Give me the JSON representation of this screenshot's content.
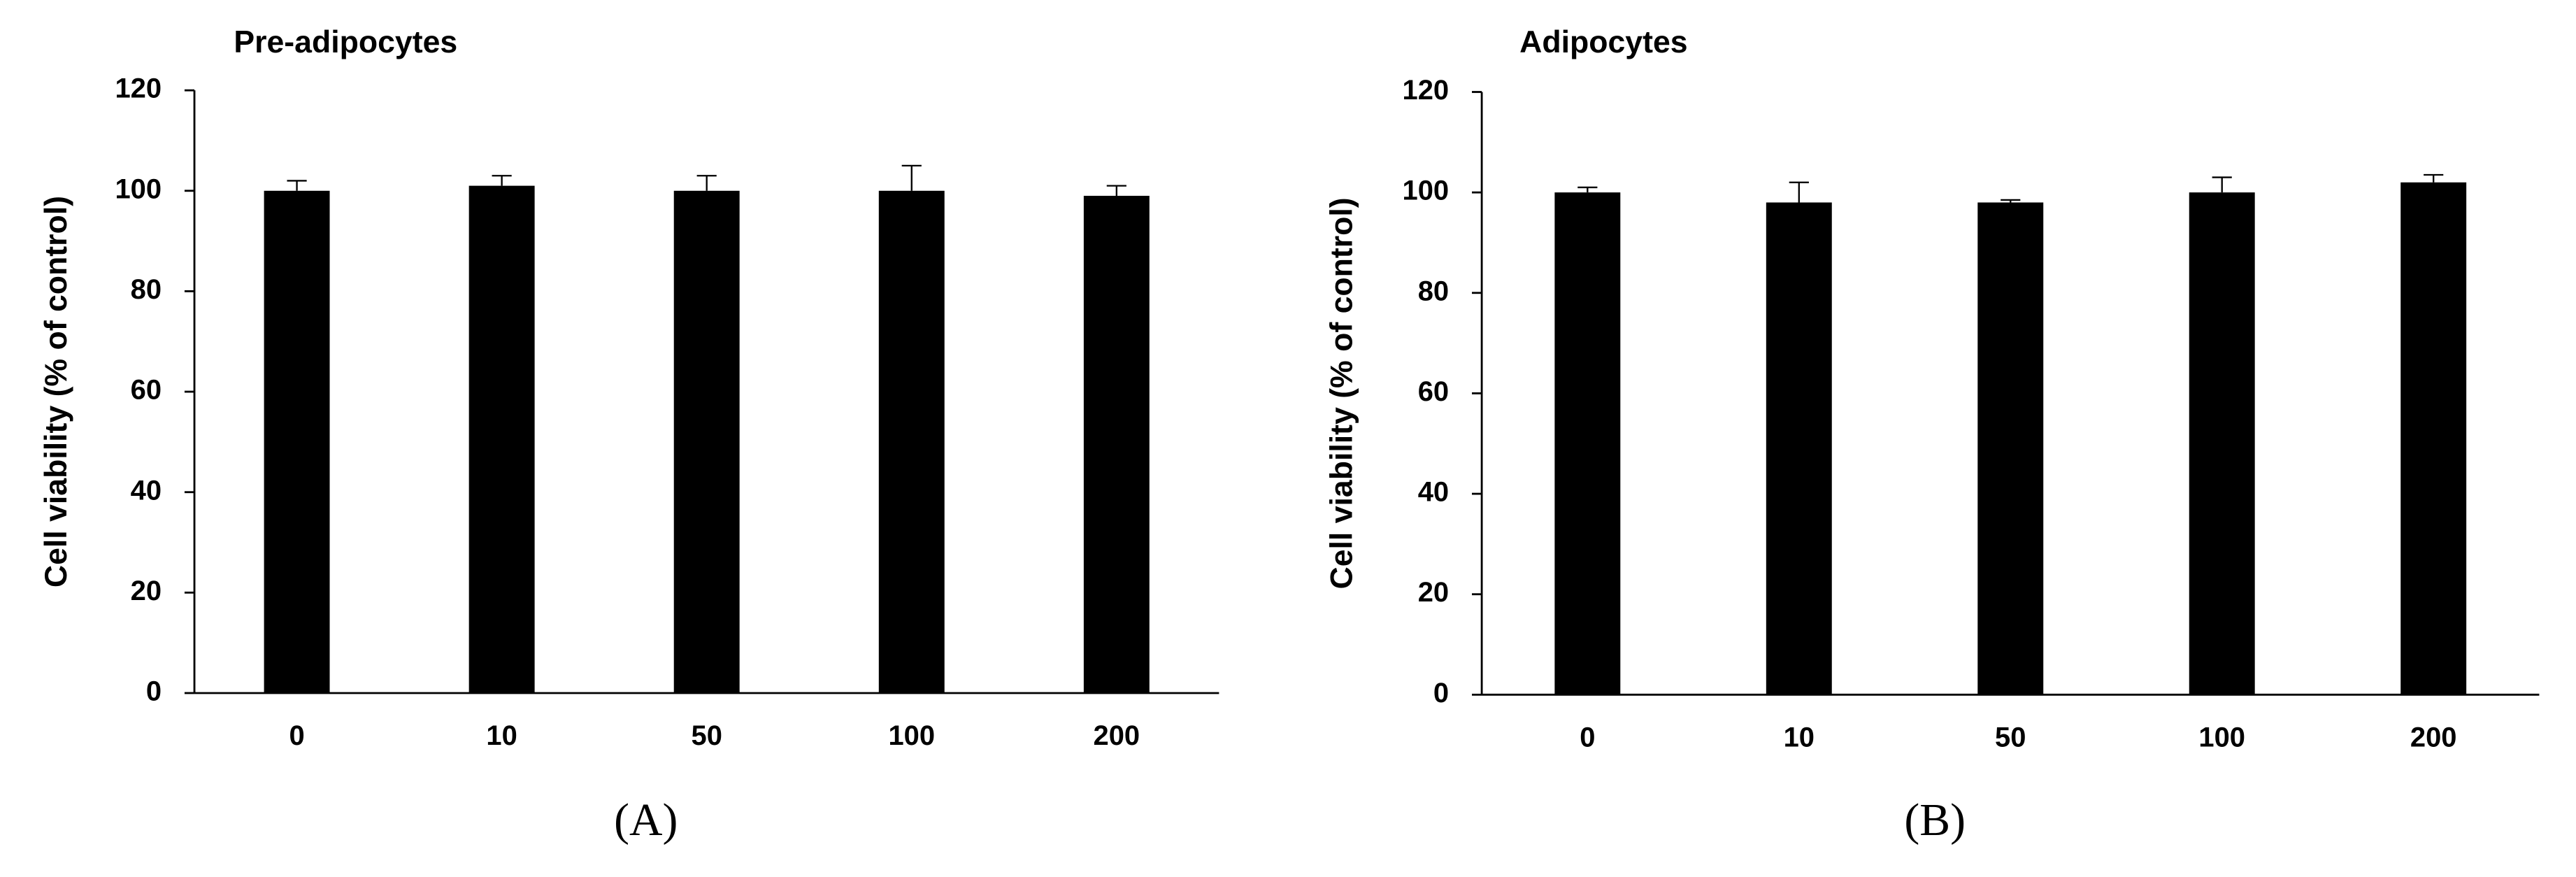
{
  "chart_data": [
    {
      "type": "bar",
      "title": "Pre-adipocytes",
      "y_label": "Cell viability (% of control)",
      "panel_label": "(A)",
      "categories": [
        "0",
        "10",
        "50",
        "100",
        "200"
      ],
      "values": [
        100,
        101,
        100,
        100,
        99
      ],
      "errors": [
        2,
        2,
        3,
        5,
        2
      ],
      "color": "#000000",
      "ylim": [
        0,
        120
      ],
      "yticks": [
        0,
        20,
        40,
        60,
        80,
        100,
        120
      ]
    },
    {
      "type": "bar",
      "title": "Adipocytes",
      "y_label": "Cell viability (% of control)",
      "panel_label": "(B)",
      "categories": [
        "0",
        "10",
        "50",
        "100",
        "200"
      ],
      "values": [
        100,
        98,
        98,
        100,
        102
      ],
      "errors": [
        1,
        4,
        0.5,
        3,
        1.5
      ],
      "color": "#000000",
      "ylim": [
        0,
        120
      ],
      "yticks": [
        0,
        20,
        40,
        60,
        80,
        100,
        120
      ]
    }
  ]
}
